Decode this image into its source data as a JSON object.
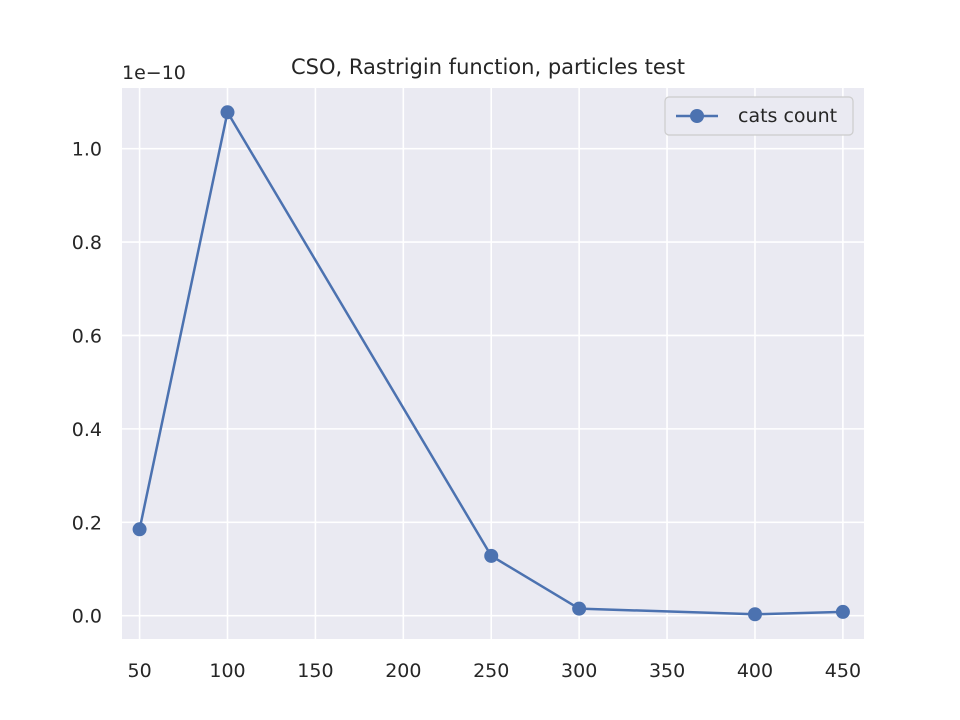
{
  "chart_data": {
    "type": "line",
    "title": "CSO, Rastrigin function, particles test",
    "xlabel": "",
    "ylabel": "",
    "y_offset_label": "1e−10",
    "xlim": [
      40,
      462
    ],
    "ylim": [
      -0.05,
      1.13
    ],
    "x_ticks": [
      50,
      100,
      150,
      200,
      250,
      300,
      350,
      400,
      450
    ],
    "x_tick_labels": [
      "50",
      "100",
      "150",
      "200",
      "250",
      "300",
      "350",
      "400",
      "450"
    ],
    "y_ticks": [
      0.0,
      0.2,
      0.4,
      0.6,
      0.8,
      1.0
    ],
    "y_tick_labels": [
      "0.0",
      "0.2",
      "0.4",
      "0.6",
      "0.8",
      "1.0"
    ],
    "grid": true,
    "legend_position": "top-right",
    "series": [
      {
        "name": "cats count",
        "color": "#4c72b0",
        "marker": "circle",
        "x": [
          50,
          100,
          250,
          300,
          400,
          450
        ],
        "y": [
          0.185,
          1.078,
          0.128,
          0.015,
          0.003,
          0.008
        ]
      }
    ]
  }
}
